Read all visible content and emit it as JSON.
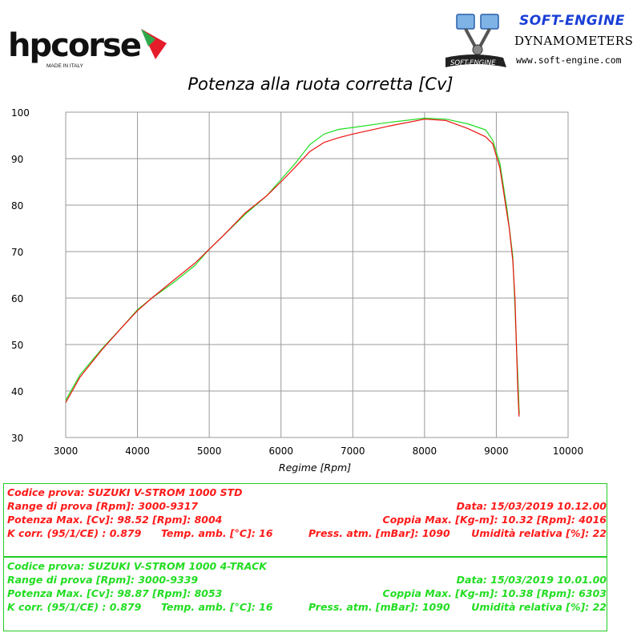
{
  "header": {
    "brand_left_text": "hpcorse",
    "brand_left_tagline": "MADE IN ITALY",
    "brand_right_title": "SOFT-ENGINE",
    "brand_right_sub": "DYNAMOMETERS",
    "brand_right_url": "www.soft-engine.com",
    "brand_right_logo_text": "SOFT-ENGINE"
  },
  "chart_data": {
    "type": "line",
    "title": "Potenza alla ruota corretta [Cv]",
    "xlabel": "Regime [Rpm]",
    "ylabel": "",
    "xlim": [
      3000,
      10000
    ],
    "ylim": [
      30,
      100
    ],
    "x_ticks": [
      3000,
      4000,
      5000,
      6000,
      7000,
      8000,
      9000,
      10000
    ],
    "y_ticks": [
      30,
      40,
      50,
      60,
      70,
      80,
      90,
      100
    ],
    "grid": true,
    "colors": {
      "green": "#22dd22",
      "red": "#ee1111",
      "grid": "#999999"
    },
    "series": [
      {
        "color": "green",
        "points": [
          [
            3000,
            38
          ],
          [
            3200,
            43.5
          ],
          [
            3500,
            49
          ],
          [
            3800,
            54
          ],
          [
            4000,
            57.5
          ],
          [
            4200,
            60
          ],
          [
            4500,
            63.3
          ],
          [
            4800,
            67
          ],
          [
            5000,
            70.5
          ],
          [
            5200,
            73.5
          ],
          [
            5500,
            78
          ],
          [
            5800,
            82
          ],
          [
            6000,
            85.5
          ],
          [
            6200,
            89
          ],
          [
            6400,
            93
          ],
          [
            6600,
            95.3
          ],
          [
            6800,
            96.3
          ],
          [
            7000,
            96.7
          ],
          [
            7500,
            97.8
          ],
          [
            8000,
            98.7
          ],
          [
            8300,
            98.5
          ],
          [
            8600,
            97.5
          ],
          [
            8850,
            96.2
          ],
          [
            8950,
            94
          ],
          [
            9050,
            89
          ],
          [
            9150,
            79
          ],
          [
            9230,
            69
          ],
          [
            9260,
            58
          ],
          [
            9280,
            50
          ],
          [
            9300,
            43
          ],
          [
            9320,
            35
          ]
        ]
      },
      {
        "color": "red",
        "points": [
          [
            3000,
            37.5
          ],
          [
            3200,
            43
          ],
          [
            3500,
            48.8
          ],
          [
            3800,
            54
          ],
          [
            4000,
            57.3
          ],
          [
            4200,
            60
          ],
          [
            4500,
            63.8
          ],
          [
            4800,
            67.5
          ],
          [
            5000,
            70.5
          ],
          [
            5200,
            73.5
          ],
          [
            5500,
            78.3
          ],
          [
            5800,
            82
          ],
          [
            6000,
            85
          ],
          [
            6200,
            88.2
          ],
          [
            6400,
            91.5
          ],
          [
            6600,
            93.5
          ],
          [
            6800,
            94.5
          ],
          [
            7000,
            95.3
          ],
          [
            7500,
            97
          ],
          [
            8000,
            98.5
          ],
          [
            8300,
            98.2
          ],
          [
            8600,
            96.5
          ],
          [
            8850,
            94.7
          ],
          [
            8950,
            93.2
          ],
          [
            9050,
            88
          ],
          [
            9130,
            80
          ],
          [
            9180,
            75
          ],
          [
            9230,
            68
          ],
          [
            9260,
            60
          ],
          [
            9280,
            50
          ],
          [
            9300,
            40
          ],
          [
            9317,
            34.5
          ]
        ]
      }
    ]
  },
  "tests": [
    {
      "color": "red",
      "codice": "Codice prova: SUZUKI V-STROM 1000 STD",
      "range": "Range di prova [Rpm]: 3000-9317",
      "data": "Data: 15/03/2019  10.12.00",
      "potenza": "Potenza Max. [Cv]: 98.52  [Rpm]: 8004",
      "coppia": "Coppia Max. [Kg-m]: 10.32  [Rpm]: 4016",
      "kcorr": "K corr. (95/1/CE) : 0.879",
      "temp": "Temp. amb. [°C]: 16",
      "press": "Press. atm. [mBar]: 1090",
      "umid": "Umidità relativa [%]: 22"
    },
    {
      "color": "green",
      "codice": "Codice prova: SUZUKI V-STROM 1000  4-TRACK",
      "range": "Range di prova [Rpm]: 3000-9339",
      "data": "Data: 15/03/2019  10.01.00",
      "potenza": "Potenza Max. [Cv]: 98.87  [Rpm]: 8053",
      "coppia": "Coppia Max. [Kg-m]: 10.38  [Rpm]: 6303",
      "kcorr": "K corr. (95/1/CE) : 0.879",
      "temp": "Temp. amb. [°C]: 16",
      "press": "Press. atm. [mBar]: 1090",
      "umid": "Umidità relativa [%]: 22"
    }
  ]
}
